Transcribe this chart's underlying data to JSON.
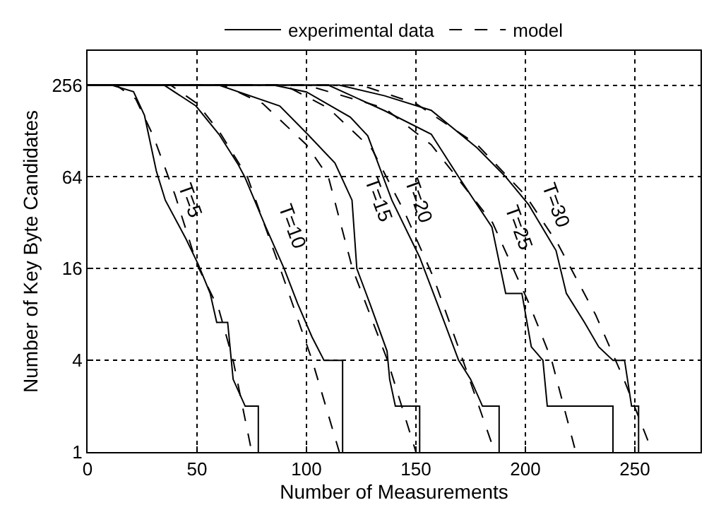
{
  "chart_data": {
    "type": "line",
    "xlabel": "Number of Measurements",
    "ylabel": "Number of Key Byte Candidates",
    "xlim": [
      0,
      280
    ],
    "xticks": [
      0,
      50,
      100,
      150,
      200,
      250
    ],
    "ylim": [
      1,
      430
    ],
    "yticks": [
      1,
      4,
      16,
      64,
      256
    ],
    "log": "y",
    "grid": true,
    "legend": "top",
    "series": [
      {
        "name": "experimental data",
        "color": "#000000",
        "line_style": "solid",
        "x": [
          0,
          11,
          21,
          26,
          31.4,
          35.5,
          45,
          50.6,
          56,
          59,
          64,
          66.5,
          72,
          78,
          78
        ],
        "values": [
          256,
          256,
          232,
          162,
          70,
          45,
          25,
          17,
          11,
          7.1,
          7.1,
          3,
          2,
          2,
          1
        ]
      },
      {
        "name": "model",
        "color": "#000000",
        "line_style": "dashed",
        "x": [
          0,
          13,
          22,
          30,
          40,
          50,
          60,
          66.5,
          75
        ],
        "values": [
          256,
          256,
          208,
          119,
          48.5,
          17,
          8.6,
          4,
          1
        ]
      },
      {
        "color": "#000000",
        "line_style": "solid",
        "x": [
          0,
          35,
          49.5,
          60,
          68.6,
          71.8,
          81.4,
          89.8,
          96,
          102.5,
          108,
          116.5,
          116.5
        ],
        "values": [
          256,
          256,
          187,
          122,
          78,
          64,
          30,
          16,
          9.4,
          5.7,
          4,
          4,
          1
        ]
      },
      {
        "color": "#000000",
        "line_style": "dashed",
        "x": [
          0,
          38,
          50,
          60,
          73,
          88,
          102.6,
          115
        ],
        "values": [
          256,
          256,
          194,
          128,
          64,
          16,
          4,
          1
        ]
      },
      {
        "color": "#000000",
        "line_style": "solid",
        "x": [
          0,
          60,
          87.8,
          100.5,
          113,
          120.8,
          123,
          129,
          136.8,
          138,
          140.6,
          151.7,
          151.7
        ],
        "values": [
          256,
          256,
          187,
          122,
          79,
          45,
          16,
          9.4,
          4.6,
          3,
          2,
          2,
          1
        ]
      },
      {
        "color": "#000000",
        "line_style": "dashed",
        "x": [
          0,
          62,
          80,
          100,
          110,
          121,
          137,
          150
        ],
        "values": [
          256,
          256,
          194,
          104,
          64,
          16,
          4,
          1
        ]
      },
      {
        "color": "#000000",
        "line_style": "solid",
        "x": [
          0,
          85,
          100,
          120,
          128,
          139,
          151.7,
          158,
          163,
          169.5,
          175,
          180.4,
          188,
          188
        ],
        "values": [
          256,
          256,
          231,
          158,
          119,
          45,
          19,
          11,
          7.1,
          4,
          3,
          2,
          2,
          1
        ]
      },
      {
        "color": "#000000",
        "line_style": "dashed",
        "x": [
          0,
          90,
          110,
          130,
          145,
          158,
          170,
          186
        ],
        "values": [
          256,
          256,
          181,
          97,
          37,
          14,
          4.6,
          1
        ]
      },
      {
        "color": "#000000",
        "line_style": "solid",
        "x": [
          0,
          110,
          135.7,
          157,
          169.5,
          184.7,
          191,
          198.4,
          202.7,
          208,
          210,
          240,
          240
        ],
        "values": [
          256,
          256,
          174,
          122,
          64,
          30,
          11,
          11,
          4.9,
          4,
          2,
          2,
          1
        ]
      },
      {
        "color": "#000000",
        "line_style": "dashed",
        "x": [
          0,
          100,
          135.7,
          157,
          185,
          202,
          212,
          223
        ],
        "values": [
          256,
          256,
          181,
          104,
          32,
          9.2,
          4,
          1
        ]
      },
      {
        "color": "#000000",
        "line_style": "solid",
        "x": [
          0,
          115,
          135.7,
          157,
          178,
          191,
          201.5,
          214,
          218.7,
          227,
          233.5,
          240,
          245.3,
          248.5,
          251.7,
          251.7
        ],
        "values": [
          256,
          256,
          218,
          175,
          99,
          64,
          42,
          21,
          11,
          7.1,
          4.9,
          4,
          4,
          2,
          2,
          1
        ]
      },
      {
        "color": "#000000",
        "line_style": "dashed",
        "x": [
          0,
          125,
          150,
          178,
          200,
          215,
          232,
          245,
          258
        ],
        "values": [
          256,
          256,
          194,
          104,
          48.5,
          23,
          8,
          3,
          1
        ]
      }
    ],
    "annotations": [
      {
        "text": "T=5",
        "x": 35.5,
        "y": 45
      },
      {
        "text": "T=10",
        "x": 81.4,
        "y": 30
      },
      {
        "text": "T=15",
        "x": 120.8,
        "y": 45
      },
      {
        "text": "T=20",
        "x": 139,
        "y": 45
      },
      {
        "text": "T=25",
        "x": 184.7,
        "y": 30
      },
      {
        "text": "T=30",
        "x": 201.5,
        "y": 42
      }
    ]
  }
}
